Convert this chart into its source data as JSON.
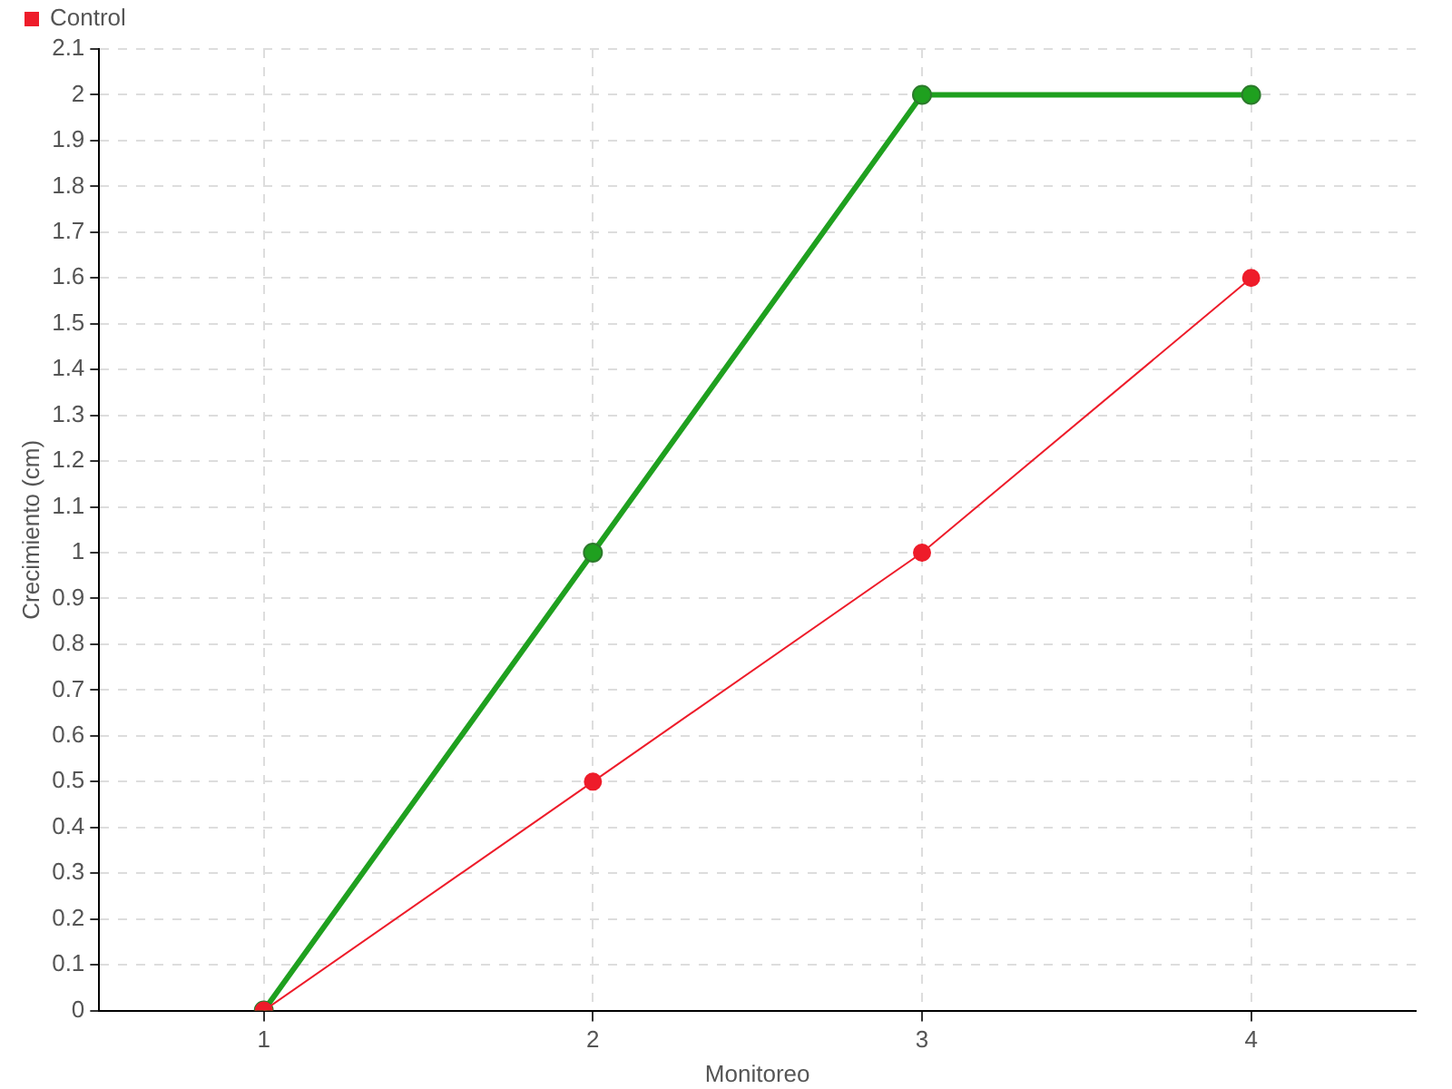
{
  "chart_data": {
    "type": "line",
    "xlabel": "Monitoreo",
    "ylabel": "Crecimiento (cm)",
    "categories": [
      "1",
      "2",
      "3",
      "4"
    ],
    "series": [
      {
        "color": "#1fa01f",
        "values": [
          0,
          1,
          2,
          2
        ]
      },
      {
        "name": "Control",
        "color": "#ee1c2a",
        "values": [
          0,
          0.5,
          1,
          1.6
        ]
      }
    ],
    "ylim": [
      0,
      2.1
    ],
    "yticks": [
      0,
      0.1,
      0.2,
      0.3,
      0.4,
      0.5,
      0.6,
      0.7,
      0.8,
      0.9,
      1,
      1.1,
      1.2,
      1.3,
      1.4,
      1.5,
      1.6,
      1.7,
      1.8,
      1.9,
      2,
      2.1
    ],
    "grid": true,
    "legend": "top left",
    "marker": "circle",
    "line_style": "solid"
  }
}
